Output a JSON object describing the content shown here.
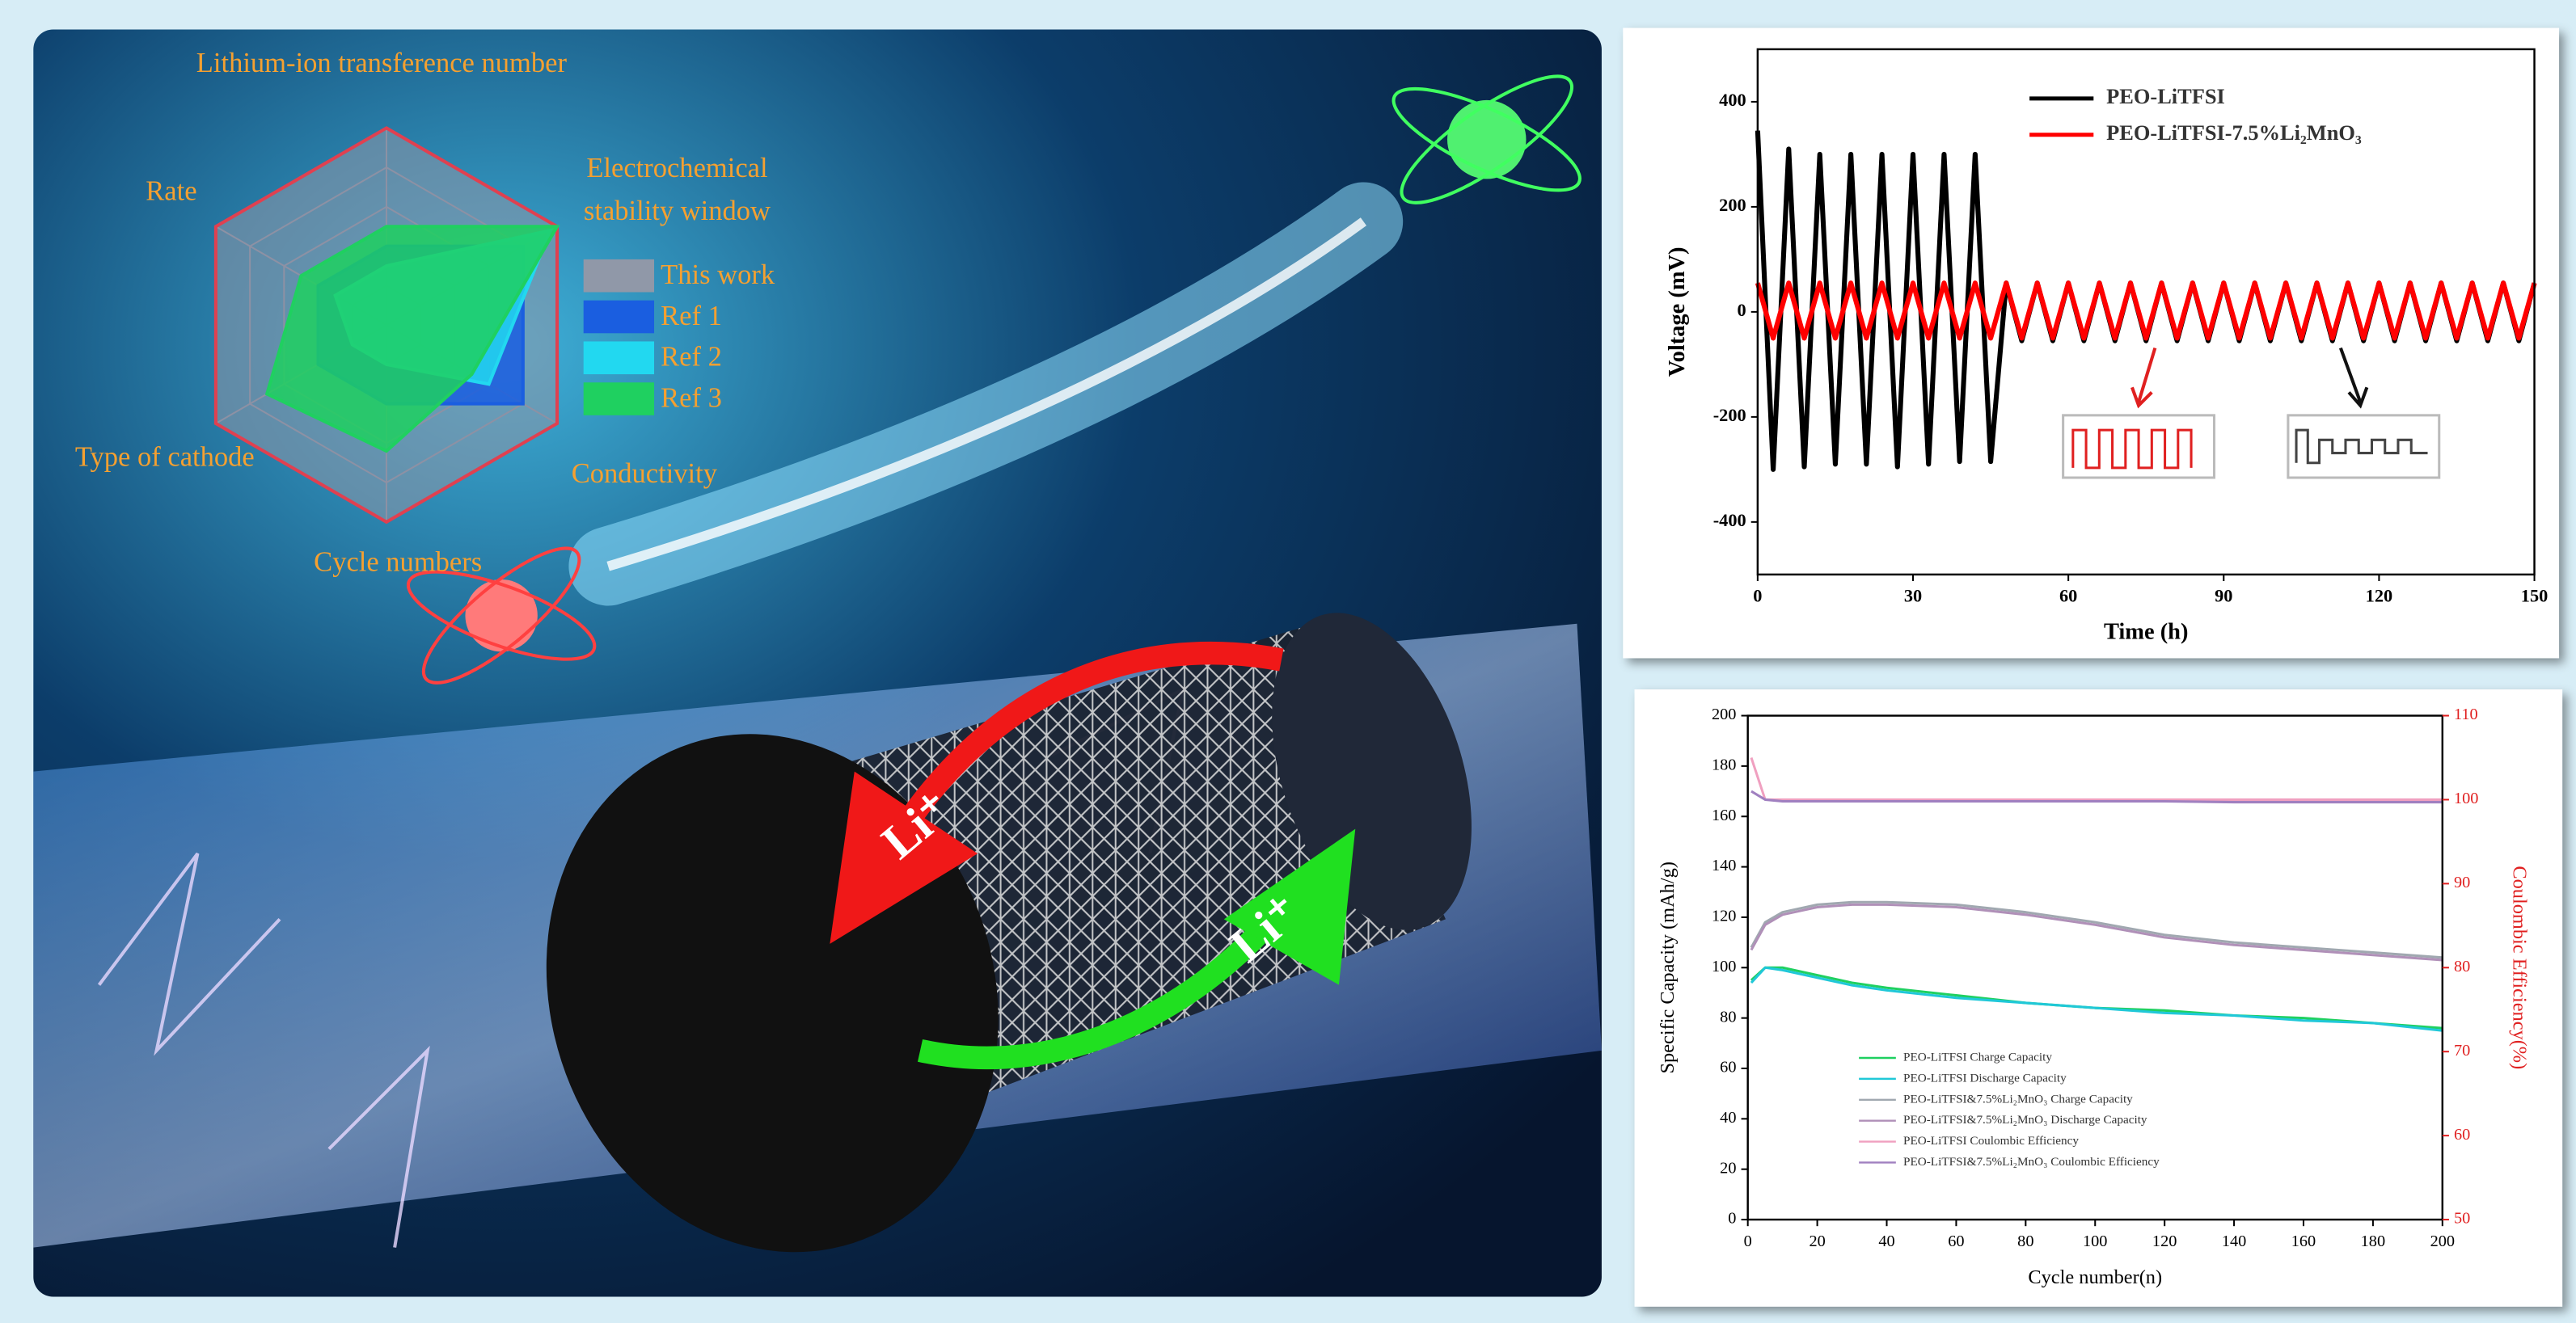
{
  "chart_data": [
    {
      "type": "radar",
      "axes": [
        "Lithium-ion transference number",
        "Electrochemical stability window",
        "Conductivity",
        "Cycle numbers",
        "Type of cathode",
        "Rate"
      ],
      "rlim": [
        0,
        5
      ],
      "legend": "right",
      "series": [
        {
          "name": "This work",
          "color": "#9098a8",
          "values": [
            5,
            5,
            5,
            5,
            5,
            5
          ]
        },
        {
          "name": "Ref 1",
          "color": "#1a5ee0",
          "values": [
            2,
            4,
            4,
            2,
            2,
            2
          ]
        },
        {
          "name": "Ref 2",
          "color": "#22d8f0",
          "values": [
            1.5,
            4.8,
            3,
            1,
            1,
            1.5
          ]
        },
        {
          "name": "Ref 3",
          "color": "#1fd060",
          "values": [
            2.5,
            5,
            2.5,
            3.2,
            3.5,
            2.5
          ]
        }
      ]
    },
    {
      "type": "line",
      "xlabel": "Time (h)",
      "ylabel": "Voltage (mV)",
      "xlim": [
        0,
        150
      ],
      "xticks": [
        0,
        30,
        60,
        90,
        120,
        150
      ],
      "ylim": [
        -500,
        500
      ],
      "yticks": [
        -400,
        -200,
        0,
        200,
        400
      ],
      "legend": "upper right",
      "x": [
        0,
        3,
        6,
        9,
        12,
        15,
        18,
        21,
        24,
        27,
        30,
        33,
        36,
        39,
        42,
        45,
        48,
        51,
        54,
        57,
        60,
        63,
        66,
        69,
        72,
        75,
        78,
        81,
        84,
        87,
        90,
        93,
        96,
        99,
        102,
        105,
        108,
        111,
        114,
        117,
        120,
        123,
        126,
        129,
        132,
        135,
        138,
        141,
        144,
        147,
        150
      ],
      "series": [
        {
          "name": "PEO-LiTFSI",
          "color": "#000000",
          "values": [
            345,
            -300,
            310,
            -295,
            300,
            -290,
            300,
            -290,
            300,
            -295,
            300,
            -290,
            300,
            -285,
            300,
            -285,
            55,
            -55,
            55,
            -55,
            55,
            -55,
            55,
            -55,
            55,
            -55,
            55,
            -55,
            55,
            -55,
            55,
            -55,
            55,
            -55,
            55,
            -55,
            55,
            -55,
            55,
            -55,
            55,
            -55,
            55,
            -55,
            55,
            -55,
            55,
            -55,
            55,
            -55,
            55
          ]
        },
        {
          "name": "PEO-LiTFSI-7.5%Li₂MnO₃",
          "color": "#ff0000",
          "values": [
            55,
            -50,
            55,
            -50,
            55,
            -50,
            55,
            -50,
            55,
            -50,
            55,
            -50,
            55,
            -50,
            55,
            -50,
            55,
            -50,
            55,
            -50,
            55,
            -50,
            55,
            -50,
            55,
            -50,
            55,
            -50,
            55,
            -50,
            55,
            -50,
            55,
            -50,
            55,
            -50,
            55,
            -50,
            55,
            -50,
            55,
            -50,
            55,
            -50,
            55,
            -50,
            55,
            -50,
            55,
            -50,
            55
          ]
        }
      ]
    },
    {
      "type": "line",
      "xlabel": "Cycle number(n)",
      "ylabel": "Specific Capacity (mAh/g)",
      "y2label": "Coulombic Efficiency(%)",
      "xlim": [
        0,
        200
      ],
      "xticks": [
        0,
        20,
        40,
        60,
        80,
        100,
        120,
        140,
        160,
        180,
        200
      ],
      "ylim": [
        0,
        200
      ],
      "yticks": [
        0,
        20,
        40,
        60,
        80,
        100,
        120,
        140,
        160,
        180,
        200
      ],
      "y2lim": [
        50,
        110
      ],
      "y2ticks": [
        50,
        60,
        70,
        80,
        90,
        100,
        110
      ],
      "legend": "lower left",
      "x": [
        1,
        5,
        10,
        20,
        30,
        40,
        60,
        80,
        100,
        120,
        140,
        160,
        180,
        200
      ],
      "series": [
        {
          "name": "PEO-LiTFSI Charge Capacity",
          "color": "#1fd060",
          "values": [
            95,
            100,
            100,
            97,
            94,
            92,
            89,
            86,
            84,
            83,
            81,
            80,
            78,
            76
          ]
        },
        {
          "name": "PEO-LiTFSI Discharge Capacity",
          "color": "#20c8d8",
          "values": [
            94,
            100,
            99,
            96,
            93,
            91,
            88,
            86,
            84,
            82,
            81,
            79,
            78,
            75
          ]
        },
        {
          "name": "PEO-LiTFSI&7.5%Li₂MnO₃ Charge Capacity",
          "color": "#a0a8b0",
          "values": [
            108,
            118,
            122,
            125,
            126,
            126,
            125,
            122,
            118,
            113,
            110,
            108,
            106,
            104
          ]
        },
        {
          "name": "PEO-LiTFSI&7.5%Li₂MnO₃ Discharge Capacity",
          "color": "#b090b8",
          "values": [
            107,
            117,
            121,
            124,
            125,
            125,
            124,
            121,
            117,
            112,
            109,
            107,
            105,
            103
          ]
        },
        {
          "name": "PEO-LiTFSI Coulombic Efficiency",
          "color": "#f0a0c0",
          "axis": "y2",
          "values": [
            105,
            100,
            100,
            100,
            100,
            100,
            100,
            100,
            100,
            100,
            100,
            100,
            100,
            100
          ]
        },
        {
          "name": "PEO-LiTFSI&7.5%Li₂MnO₃ Coulombic Efficiency",
          "color": "#a080c0",
          "axis": "y2",
          "values": [
            101,
            100,
            99.8,
            99.8,
            99.8,
            99.8,
            99.8,
            99.8,
            99.8,
            99.8,
            99.7,
            99.7,
            99.7,
            99.7
          ]
        }
      ]
    }
  ],
  "illustration": {
    "labels": [
      "Li⁺",
      "Li⁺"
    ]
  }
}
